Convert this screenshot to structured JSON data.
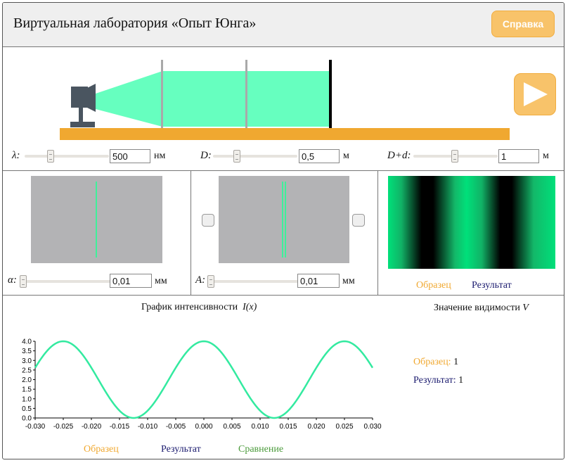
{
  "header": {
    "title": "Виртуальная лаборатория «Опыт Юнга»",
    "help_label": "Справка"
  },
  "bench": {
    "lambda": {
      "label": "λ:",
      "value": "500",
      "unit": "нм"
    },
    "D": {
      "label": "D:",
      "value": "0,5",
      "unit": "м"
    },
    "Dd": {
      "label": "D+d:",
      "value": "1",
      "unit": "м"
    }
  },
  "panels": {
    "alpha": {
      "label": "α:",
      "value": "0,01",
      "unit": "мм"
    },
    "A": {
      "label": "A:",
      "value": "0,01",
      "unit": "мм"
    },
    "legend_sample": "Образец",
    "legend_result": "Результат"
  },
  "graph": {
    "title": "График интенсивности",
    "title_fn": "I(x)",
    "legend": {
      "sample": "Образец",
      "result": "Результат",
      "compare": "Сравнение"
    }
  },
  "visibility": {
    "title": "Значение видимости",
    "title_var": "V",
    "sample_label": "Образец:",
    "sample_value": "1",
    "result_label": "Результат:",
    "result_value": "1"
  },
  "colors": {
    "accent": "#f8c36a",
    "beam": "#66ffbf",
    "rail": "#f0a830",
    "curve": "#33eaa0",
    "sample": "#f0a830",
    "result": "#1a1a6e",
    "compare": "#4a9a3a"
  },
  "chart_data": {
    "type": "line",
    "title": "График интенсивности I(x)",
    "xlabel": "",
    "ylabel": "",
    "xlim": [
      -0.03,
      0.03
    ],
    "ylim": [
      0,
      4.0
    ],
    "x_ticks": [
      "-0.030",
      "-0.025",
      "-0.020",
      "-0.015",
      "-0.010",
      "-0.005",
      "0.000",
      "0.005",
      "0.010",
      "0.015",
      "0.020",
      "0.025",
      "0.030"
    ],
    "y_ticks": [
      "0.0",
      "0.5",
      "1.0",
      "1.5",
      "2.0",
      "2.5",
      "3.0",
      "3.5",
      "4.0"
    ],
    "series": [
      {
        "name": "Сравнение",
        "function": "2+2*cos(2*pi*x/0.025)",
        "x_range": [
          -0.03,
          0.03
        ],
        "peak": 4.0,
        "period": 0.025
      }
    ]
  }
}
